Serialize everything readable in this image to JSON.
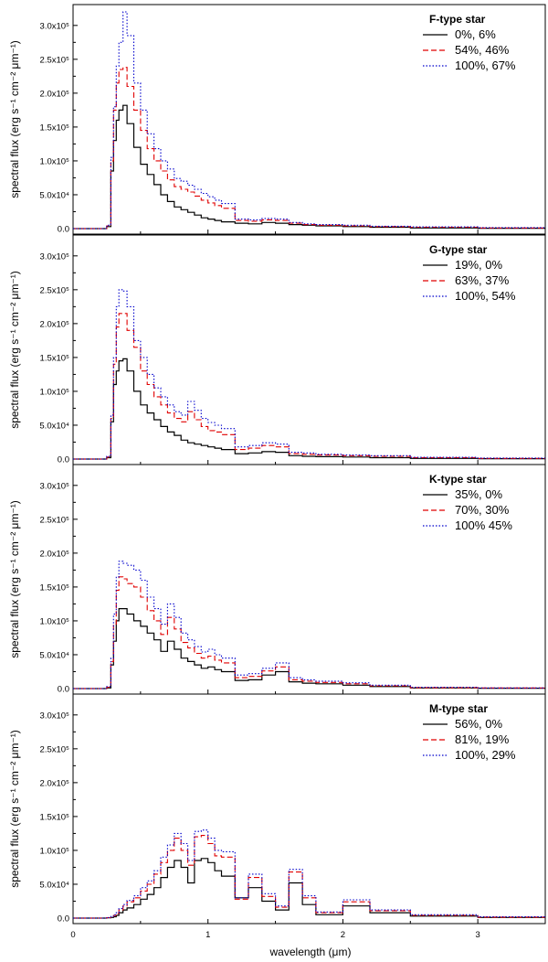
{
  "figure": {
    "xlabel": "wavelength (μm)",
    "xticks": [
      "0",
      "1",
      "2",
      "3"
    ],
    "colors": {
      "axis": "#000000",
      "s1": "#000000",
      "s2": "#e00000",
      "s3": "#0000cc"
    }
  },
  "chart_data": [
    {
      "type": "line",
      "title": "F-type star",
      "ylabel": "spectral flux (erg s⁻¹ cm⁻² μm⁻¹)",
      "xlim": [
        0,
        3.5
      ],
      "ylim": [
        0,
        320000
      ],
      "yticks": [
        0,
        50000,
        100000,
        150000,
        200000,
        250000,
        300000
      ],
      "ytick_labels": [
        "0.0",
        "5.0x10⁴",
        "1.0x10⁵",
        "1.5x10⁵",
        "2.0x10⁵",
        "2.5x10⁵",
        "3.0x10⁵"
      ],
      "x_edges": [
        0.0,
        0.25,
        0.28,
        0.3,
        0.32,
        0.34,
        0.37,
        0.4,
        0.45,
        0.5,
        0.55,
        0.6,
        0.65,
        0.7,
        0.75,
        0.8,
        0.85,
        0.9,
        0.95,
        1.0,
        1.05,
        1.1,
        1.2,
        1.3,
        1.4,
        1.5,
        1.6,
        1.7,
        1.8,
        2.0,
        2.2,
        2.5,
        3.0,
        3.5
      ],
      "series": [
        {
          "name": "0%, 6%",
          "style": "solid",
          "values": [
            0,
            3000,
            85000,
            130000,
            160000,
            175000,
            182000,
            155000,
            120000,
            95000,
            80000,
            65000,
            50000,
            40000,
            32000,
            28000,
            24000,
            20000,
            16000,
            14000,
            12000,
            10000,
            8000,
            7000,
            9000,
            8000,
            6000,
            5000,
            4000,
            3000,
            2000,
            1000,
            500
          ]
        },
        {
          "name": "54%, 46%",
          "style": "dashed",
          "values": [
            0,
            4000,
            100000,
            175000,
            215000,
            235000,
            238000,
            210000,
            175000,
            145000,
            118000,
            100000,
            85000,
            72000,
            62000,
            58000,
            54000,
            48000,
            42000,
            38000,
            34000,
            30000,
            12000,
            11000,
            13000,
            12000,
            8000,
            6000,
            5000,
            4000,
            3000,
            2000,
            1000
          ]
        },
        {
          "name": "100%, 67%",
          "style": "dotted",
          "values": [
            0,
            5000,
            105000,
            180000,
            240000,
            275000,
            320000,
            285000,
            215000,
            175000,
            140000,
            118000,
            100000,
            88000,
            74000,
            70000,
            64000,
            58000,
            52000,
            47000,
            42000,
            37000,
            14000,
            13000,
            15000,
            14000,
            9000,
            7000,
            6000,
            5000,
            3500,
            2500,
            1500
          ]
        }
      ]
    },
    {
      "type": "line",
      "title": "G-type star",
      "ylabel": "spectral flux (erg s⁻¹ cm⁻² μm⁻¹)",
      "xlim": [
        0,
        3.5
      ],
      "ylim": [
        0,
        320000
      ],
      "yticks": [
        0,
        50000,
        100000,
        150000,
        200000,
        250000,
        300000
      ],
      "ytick_labels": [
        "0.0",
        "5.0x10⁴",
        "1.0x10⁵",
        "1.5x10⁵",
        "2.0x10⁵",
        "2.5x10⁵",
        "3.0x10⁵"
      ],
      "x_edges": [
        0.0,
        0.25,
        0.28,
        0.3,
        0.32,
        0.34,
        0.37,
        0.4,
        0.45,
        0.5,
        0.55,
        0.6,
        0.65,
        0.7,
        0.75,
        0.8,
        0.85,
        0.9,
        0.95,
        1.0,
        1.05,
        1.1,
        1.2,
        1.3,
        1.4,
        1.5,
        1.6,
        1.7,
        1.8,
        2.0,
        2.2,
        2.5,
        3.0,
        3.5
      ],
      "series": [
        {
          "name": "19%, 0%",
          "style": "solid",
          "values": [
            0,
            2000,
            55000,
            110000,
            130000,
            145000,
            148000,
            130000,
            100000,
            80000,
            68000,
            58000,
            48000,
            40000,
            35000,
            28000,
            24000,
            22000,
            20000,
            18000,
            16000,
            14000,
            8000,
            9000,
            11000,
            10000,
            5000,
            4000,
            3500,
            3000,
            2000,
            1000,
            500
          ]
        },
        {
          "name": "63%, 37%",
          "style": "dashed",
          "values": [
            0,
            3000,
            60000,
            140000,
            195000,
            215000,
            215000,
            190000,
            165000,
            130000,
            110000,
            92000,
            80000,
            68000,
            60000,
            55000,
            70000,
            58000,
            48000,
            42000,
            40000,
            36000,
            14000,
            16000,
            20000,
            18000,
            8000,
            7000,
            6000,
            5000,
            4000,
            2000,
            1000
          ]
        },
        {
          "name": "100%, 54%",
          "style": "dotted",
          "values": [
            0,
            4000,
            65000,
            150000,
            225000,
            250000,
            248000,
            225000,
            175000,
            150000,
            125000,
            105000,
            92000,
            80000,
            70000,
            65000,
            85000,
            72000,
            60000,
            54000,
            50000,
            45000,
            18000,
            20000,
            24000,
            22000,
            10000,
            9000,
            7000,
            6000,
            5000,
            2500,
            1500
          ]
        }
      ]
    },
    {
      "type": "line",
      "title": "K-type star",
      "ylabel": "spectral flux (erg s⁻¹ cm⁻² μm⁻¹)",
      "xlim": [
        0,
        3.5
      ],
      "ylim": [
        0,
        320000
      ],
      "yticks": [
        0,
        50000,
        100000,
        150000,
        200000,
        250000,
        300000
      ],
      "ytick_labels": [
        "0.0",
        "5.0x10⁴",
        "1.0x10⁵",
        "1.5x10⁵",
        "2.0x10⁵",
        "2.5x10⁵",
        "3.0x10⁵"
      ],
      "x_edges": [
        0.0,
        0.25,
        0.28,
        0.3,
        0.32,
        0.34,
        0.37,
        0.4,
        0.45,
        0.5,
        0.55,
        0.6,
        0.65,
        0.7,
        0.75,
        0.8,
        0.85,
        0.9,
        0.95,
        1.0,
        1.05,
        1.1,
        1.2,
        1.3,
        1.4,
        1.5,
        1.6,
        1.7,
        1.8,
        2.0,
        2.2,
        2.5,
        3.0,
        3.5
      ],
      "series": [
        {
          "name": "35%, 0%",
          "style": "solid",
          "values": [
            0,
            1000,
            35000,
            70000,
            100000,
            118000,
            118000,
            110000,
            100000,
            92000,
            82000,
            72000,
            55000,
            70000,
            58000,
            45000,
            40000,
            35000,
            30000,
            32000,
            28000,
            25000,
            12000,
            13000,
            20000,
            25000,
            10000,
            8000,
            7000,
            5000,
            3000,
            1000,
            500
          ]
        },
        {
          "name": "70%, 30%",
          "style": "dashed",
          "values": [
            0,
            2000,
            40000,
            95000,
            145000,
            165000,
            162000,
            155000,
            150000,
            135000,
            115000,
            100000,
            80000,
            105000,
            88000,
            68000,
            60000,
            52000,
            45000,
            48000,
            42000,
            38000,
            16000,
            18000,
            26000,
            32000,
            13000,
            11000,
            9000,
            7000,
            4000,
            1500,
            1000
          ]
        },
        {
          "name": "100% 45%",
          "style": "dotted",
          "values": [
            0,
            3000,
            45000,
            110000,
            165000,
            188000,
            185000,
            182000,
            175000,
            160000,
            135000,
            118000,
            95000,
            125000,
            105000,
            82000,
            72000,
            62000,
            54000,
            58000,
            50000,
            45000,
            20000,
            22000,
            30000,
            38000,
            16000,
            13000,
            11000,
            8500,
            5000,
            2000,
            1000
          ]
        }
      ]
    },
    {
      "type": "line",
      "title": "M-type star",
      "ylabel": "spectral flux (erg s⁻¹ cm⁻² μm⁻¹)",
      "xlim": [
        0,
        3.5
      ],
      "ylim": [
        0,
        320000
      ],
      "yticks": [
        0,
        50000,
        100000,
        150000,
        200000,
        250000,
        300000
      ],
      "ytick_labels": [
        "0.0",
        "5.0x10⁴",
        "1.0x10⁵",
        "1.5x10⁵",
        "2.0x10⁵",
        "2.5x10⁵",
        "3.0x10⁵"
      ],
      "x_edges": [
        0.0,
        0.25,
        0.28,
        0.3,
        0.32,
        0.34,
        0.37,
        0.4,
        0.45,
        0.5,
        0.55,
        0.6,
        0.65,
        0.7,
        0.75,
        0.8,
        0.85,
        0.9,
        0.95,
        1.0,
        1.05,
        1.1,
        1.2,
        1.3,
        1.4,
        1.5,
        1.6,
        1.7,
        1.8,
        2.0,
        2.2,
        2.5,
        3.0,
        3.5
      ],
      "series": [
        {
          "name": "56%, 0%",
          "style": "solid",
          "values": [
            0,
            500,
            1000,
            2000,
            4000,
            8000,
            12000,
            15000,
            20000,
            28000,
            35000,
            45000,
            60000,
            75000,
            85000,
            75000,
            52000,
            85000,
            88000,
            82000,
            70000,
            62000,
            30000,
            45000,
            25000,
            12000,
            52000,
            20000,
            5000,
            18000,
            8000,
            3000,
            1000
          ]
        },
        {
          "name": "81%, 19%",
          "style": "dashed",
          "values": [
            0,
            700,
            2000,
            4000,
            7000,
            12000,
            18000,
            24000,
            30000,
            40000,
            50000,
            65000,
            82000,
            100000,
            118000,
            100000,
            78000,
            120000,
            122000,
            110000,
            92000,
            90000,
            28000,
            60000,
            32000,
            16000,
            68000,
            30000,
            8000,
            24000,
            11000,
            4000,
            1500
          ]
        },
        {
          "name": "100%, 29%",
          "style": "dotted",
          "values": [
            0,
            800,
            2500,
            5000,
            8000,
            14000,
            20000,
            26000,
            33000,
            45000,
            55000,
            70000,
            90000,
            108000,
            125000,
            110000,
            85000,
            128000,
            130000,
            118000,
            100000,
            98000,
            30000,
            65000,
            36000,
            18000,
            72000,
            33000,
            9000,
            27000,
            12000,
            5000,
            2000
          ]
        }
      ]
    }
  ]
}
